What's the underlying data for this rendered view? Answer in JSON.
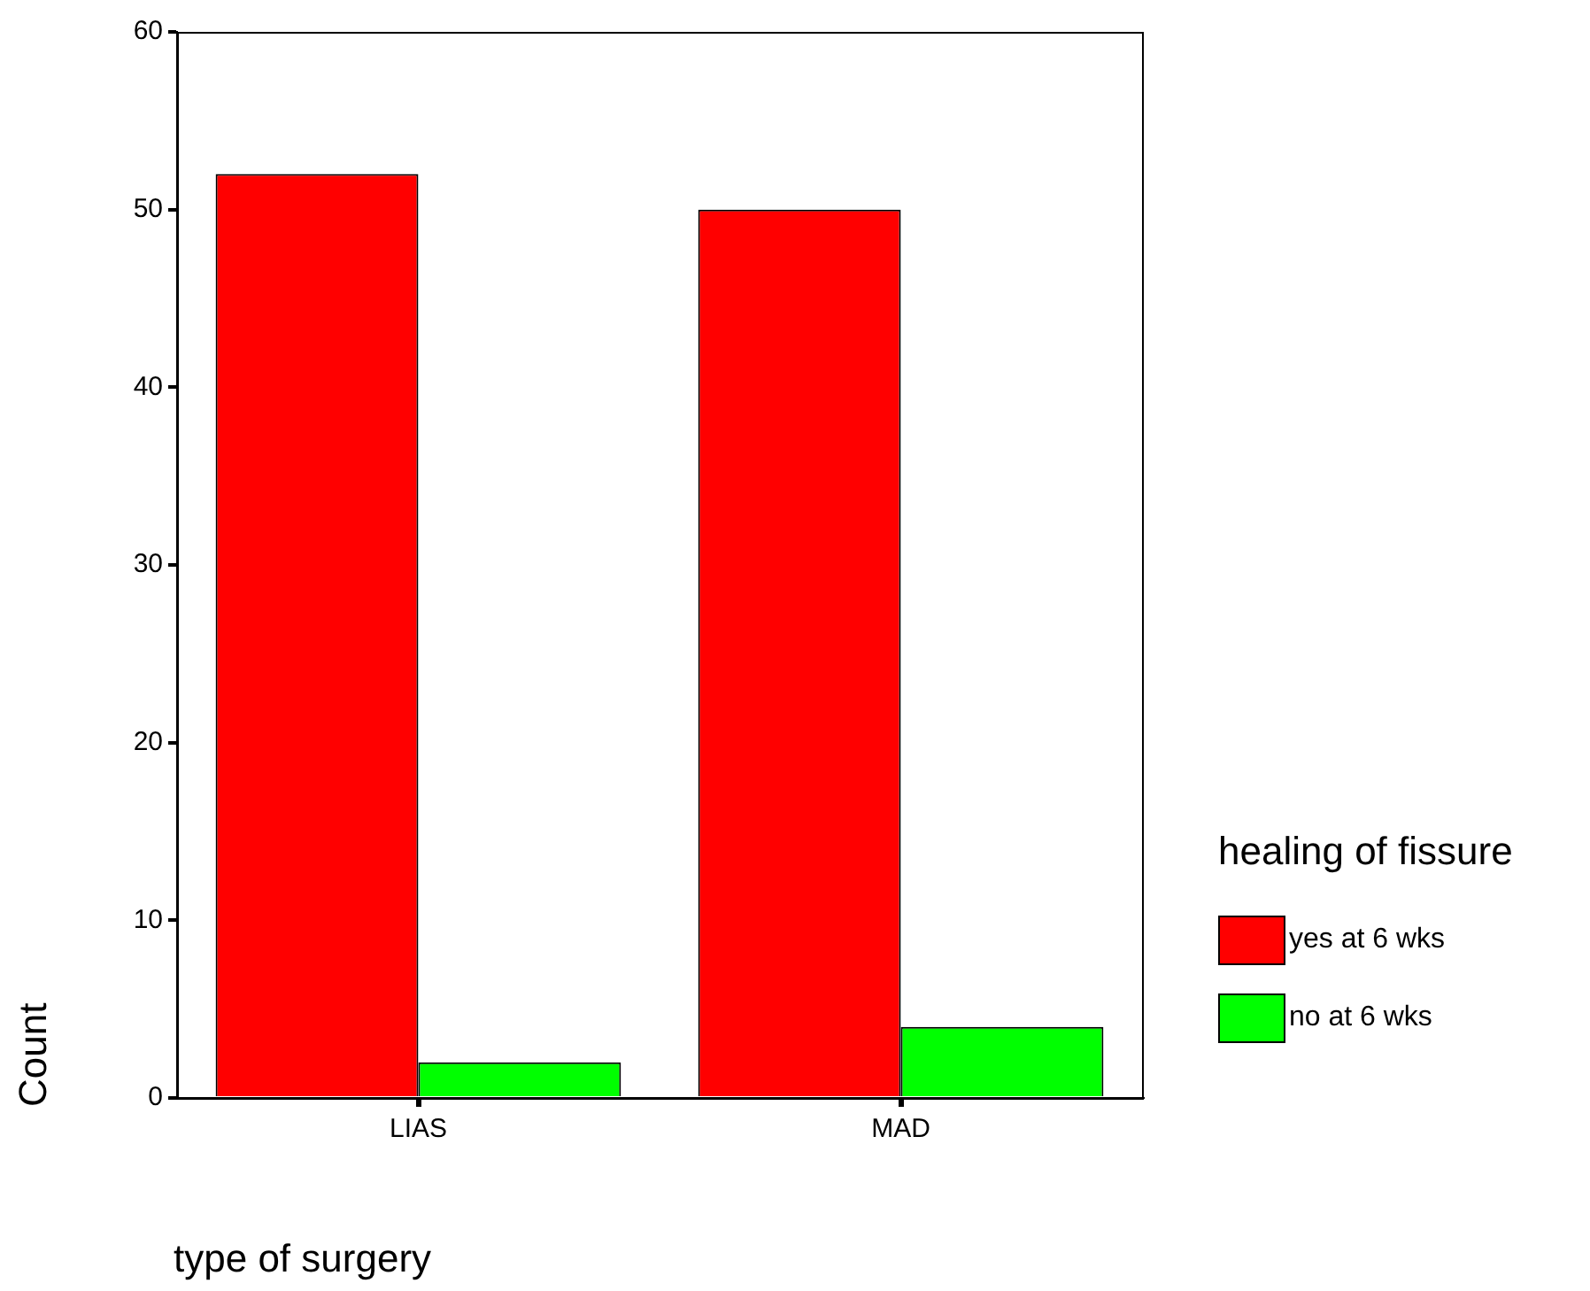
{
  "chart_data": {
    "type": "bar",
    "xlabel": "type of surgery",
    "ylabel": "Count",
    "legend_title": "healing of fissure",
    "categories": [
      "LIAS",
      "MAD"
    ],
    "series": [
      {
        "name": "yes at 6 wks",
        "color": "#ff0000",
        "values": [
          52,
          50
        ]
      },
      {
        "name": "no at 6 wks",
        "color": "#00ff00",
        "values": [
          2,
          4
        ]
      }
    ],
    "ylim": [
      0,
      60
    ],
    "yticks": [
      0,
      10,
      20,
      30,
      40,
      50,
      60
    ],
    "legend": "right"
  }
}
